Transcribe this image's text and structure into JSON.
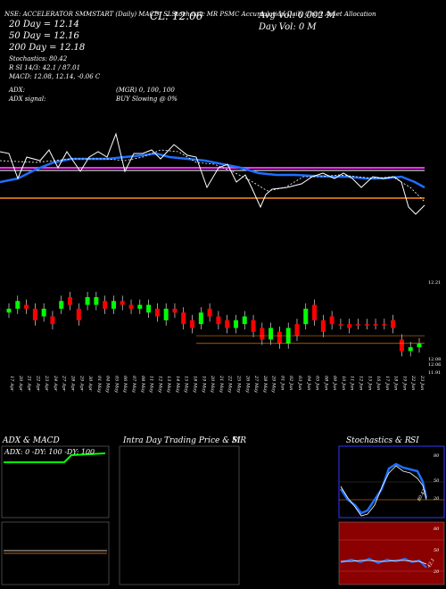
{
  "header": {
    "row1": "NSE: ACCELERATOR SMMSTART (Daily) MACD: SLStochastic MR PSMC Accumulation Daily Chart Asset Allocation",
    "sma20": "20  Day = 12.14",
    "cl": "CL: 12.06",
    "avg_vol": "Avg Vol: 0.002  M",
    "sma50": "50  Day = 12.16",
    "day_vol": "Day Vol: 0   M",
    "sma200": "200  Day = 12.18",
    "stoch_label": "Stochastics: 80.42",
    "stoch_vals": "R        SI 14/3: 42.1 / 87.01",
    "macd_vals": "MACD: 12.08,  12.14,  -0.06  C",
    "adx_label": "ADX:",
    "adx_vals": "(MGR) 0,  100,  100",
    "adx_signal": "ADX  signal:",
    "buy_signal": "BUY Slowing @ 0%"
  },
  "chart_data": {
    "type": "candlestick",
    "x": [
      "17 Apr",
      "20 Apr",
      "21 Apr",
      "22 Apr",
      "23 Apr",
      "24 Apr",
      "27 Apr",
      "28 Apr",
      "29 Apr",
      "30 Apr",
      "01 May",
      "04 May",
      "05 May",
      "06 May",
      "07 May",
      "08 May",
      "11 May",
      "12 May",
      "13 May",
      "14 May",
      "15 May",
      "18 May",
      "19 May",
      "20 May",
      "21 May",
      "22 May",
      "25 May",
      "26 May",
      "27 May",
      "28 May",
      "29 May",
      "01 Jun",
      "02 Jun",
      "03 Jun",
      "04 Jun",
      "05 Jun",
      "08 Jun",
      "09 Jun",
      "10 Jun",
      "11 Jun",
      "12 Jun",
      "15 Jun",
      "16 Jun",
      "17 Jun",
      "18 Jun",
      "19 Jun",
      "22 Jun",
      "23 Jun"
    ],
    "price_ticks": [
      "12.21",
      "12.08",
      "12.06",
      "11.91"
    ],
    "candles": [
      {
        "o": 12.14,
        "c": 12.15,
        "up": true
      },
      {
        "o": 12.15,
        "c": 12.17,
        "up": true
      },
      {
        "o": 12.16,
        "c": 12.15,
        "up": false
      },
      {
        "o": 12.15,
        "c": 12.12,
        "up": false
      },
      {
        "o": 12.13,
        "c": 12.15,
        "up": true
      },
      {
        "o": 12.13,
        "c": 12.11,
        "up": false
      },
      {
        "o": 12.15,
        "c": 12.17,
        "up": true
      },
      {
        "o": 12.18,
        "c": 12.16,
        "up": false
      },
      {
        "o": 12.15,
        "c": 12.12,
        "up": false
      },
      {
        "o": 12.16,
        "c": 12.18,
        "up": true
      },
      {
        "o": 12.16,
        "c": 12.18,
        "up": true
      },
      {
        "o": 12.17,
        "c": 12.15,
        "up": false
      },
      {
        "o": 12.15,
        "c": 12.17,
        "up": true
      },
      {
        "o": 12.17,
        "c": 12.16,
        "up": false
      },
      {
        "o": 12.16,
        "c": 12.15,
        "up": false
      },
      {
        "o": 12.15,
        "c": 12.16,
        "up": true
      },
      {
        "o": 12.14,
        "c": 12.16,
        "up": true
      },
      {
        "o": 12.15,
        "c": 12.13,
        "up": false
      },
      {
        "o": 12.12,
        "c": 12.15,
        "up": true
      },
      {
        "o": 12.15,
        "c": 12.14,
        "up": false
      },
      {
        "o": 12.14,
        "c": 12.11,
        "up": false
      },
      {
        "o": 12.12,
        "c": 12.1,
        "up": false
      },
      {
        "o": 12.11,
        "c": 12.14,
        "up": true
      },
      {
        "o": 12.15,
        "c": 12.13,
        "up": false
      },
      {
        "o": 12.13,
        "c": 12.11,
        "up": false
      },
      {
        "o": 12.12,
        "c": 12.1,
        "up": false
      },
      {
        "o": 12.1,
        "c": 12.12,
        "up": true
      },
      {
        "o": 12.11,
        "c": 12.13,
        "up": true
      },
      {
        "o": 12.12,
        "c": 12.09,
        "up": false
      },
      {
        "o": 12.1,
        "c": 12.07,
        "up": false
      },
      {
        "o": 12.07,
        "c": 12.1,
        "up": true
      },
      {
        "o": 12.09,
        "c": 12.06,
        "up": false
      },
      {
        "o": 12.06,
        "c": 12.1,
        "up": true
      },
      {
        "o": 12.11,
        "c": 12.08,
        "up": false
      },
      {
        "o": 12.11,
        "c": 12.15,
        "up": true
      },
      {
        "o": 12.16,
        "c": 12.12,
        "up": false
      },
      {
        "o": 12.12,
        "c": 12.09,
        "up": false
      },
      {
        "o": 12.13,
        "c": 12.11,
        "up": false
      },
      {
        "o": 12.11,
        "c": 12.11,
        "up": false
      },
      {
        "o": 12.11,
        "c": 12.1,
        "up": false
      },
      {
        "o": 12.11,
        "c": 12.11,
        "up": false
      },
      {
        "o": 12.11,
        "c": 12.11,
        "up": false
      },
      {
        "o": 12.11,
        "c": 12.11,
        "up": false
      },
      {
        "o": 12.11,
        "c": 12.11,
        "up": false
      },
      {
        "o": 12.12,
        "c": 12.1,
        "up": false
      },
      {
        "o": 12.07,
        "c": 12.04,
        "up": false
      },
      {
        "o": 12.04,
        "c": 12.05,
        "up": true
      },
      {
        "o": 12.05,
        "c": 12.06,
        "up": true
      }
    ],
    "ylim": [
      11.99,
      12.21
    ]
  },
  "panels": {
    "adx": {
      "title": "ADX  & MACD",
      "label": "ADX: 0   -DY: 100   -DY: 100"
    },
    "intra": {
      "title": "Intra  Day Trading Price  & MR",
      "suffix": "SI"
    },
    "stoch": {
      "title": "Stochastics  & R",
      "suffix": "SI",
      "ticks": [
        "80",
        "50",
        "20"
      ],
      "rsi_ticks": [
        "80",
        "50",
        "20"
      ],
      "stoch_last": "80.42",
      "rsi_last": "42.1"
    }
  },
  "colors": {
    "up": "#00ff00",
    "down": "#ff0000",
    "sma_blue": "#1e6fff",
    "magenta": "#ff33ff",
    "orange": "#ff8c1a",
    "rsi_bg": "#8b0000",
    "stoch_border": "#3333ff"
  }
}
